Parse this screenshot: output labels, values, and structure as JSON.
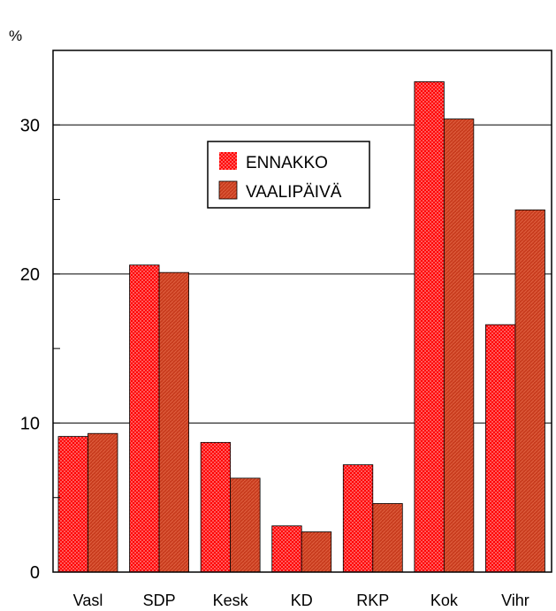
{
  "chart_data": {
    "type": "bar",
    "title": "",
    "xlabel": "",
    "ylabel": "%",
    "ylim": [
      0,
      35
    ],
    "yticks": [
      0,
      10,
      20,
      30
    ],
    "grid": true,
    "legend_position": "upper-center",
    "categories": [
      "Vasl",
      "SDP",
      "Kesk",
      "KD",
      "RKP",
      "Kok",
      "Vihr"
    ],
    "series": [
      {
        "name": "ENNAKKO",
        "color": "#ff0000",
        "values": [
          9.1,
          20.6,
          8.7,
          3.1,
          7.2,
          32.9,
          16.6
        ]
      },
      {
        "name": "VAALIPÄIVÄ",
        "color": "#c83c1e",
        "values": [
          9.3,
          20.1,
          6.3,
          2.7,
          4.6,
          30.4,
          24.3
        ]
      }
    ]
  }
}
